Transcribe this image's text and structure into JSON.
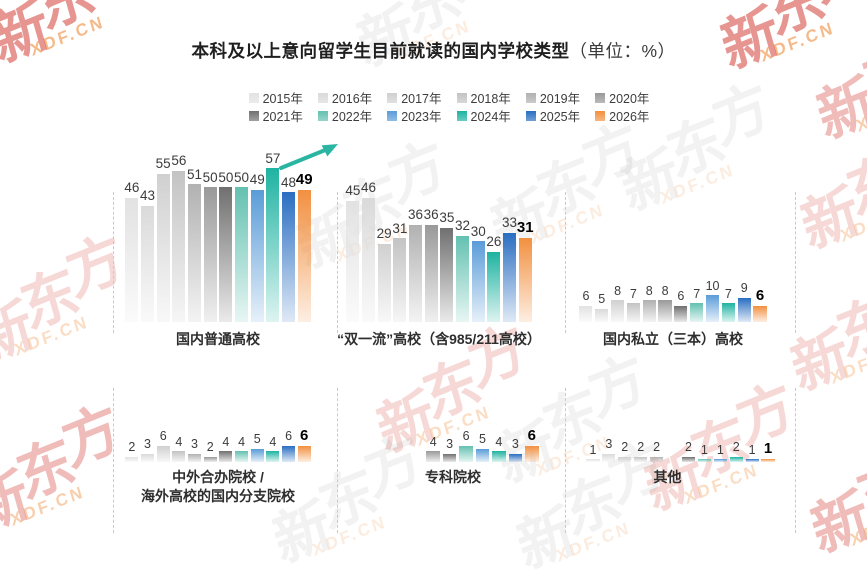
{
  "page": {
    "title_main": "本科及以上意向留学生目前就读的国内学校类型",
    "title_unit": "（单位：%）"
  },
  "brand": {
    "name": "新东方",
    "site": "XDF.CN"
  },
  "colors": {
    "arrow": "#2ab5a3",
    "value_label": "#3c3c3c",
    "emphasis_label": "#000000"
  },
  "emphasis_year": "2026年",
  "legend": {
    "items": [
      {
        "label": "2015年",
        "color": "#e2e2e2"
      },
      {
        "label": "2016年",
        "color": "#dadada"
      },
      {
        "label": "2017年",
        "color": "#d0d0d0"
      },
      {
        "label": "2018年",
        "color": "#c3c3c3"
      },
      {
        "label": "2019年",
        "color": "#b1b1b1"
      },
      {
        "label": "2020年",
        "color": "#999999"
      },
      {
        "label": "2021年",
        "color": "#707070"
      },
      {
        "label": "2022年",
        "color": "#63c1b0"
      },
      {
        "label": "2023年",
        "color": "#5a9cd8"
      },
      {
        "label": "2024年",
        "color": "#1eb3a1"
      },
      {
        "label": "2025年",
        "color": "#2a6ec1"
      },
      {
        "label": "2026年",
        "color": "#f29040"
      }
    ]
  },
  "chart_data": [
    {
      "type": "bar",
      "title": "国内普通高校",
      "unit": "%",
      "annotation": "trend-arrow-up",
      "points": [
        {
          "year": "2015年",
          "value": 46
        },
        {
          "year": "2016年",
          "value": 43
        },
        {
          "year": "2017年",
          "value": 55
        },
        {
          "year": "2018年",
          "value": 56
        },
        {
          "year": "2019年",
          "value": 51
        },
        {
          "year": "2020年",
          "value": 50
        },
        {
          "year": "2021年",
          "value": 50
        },
        {
          "year": "2022年",
          "value": 50
        },
        {
          "year": "2023年",
          "value": 49
        },
        {
          "year": "2024年",
          "value": 57
        },
        {
          "year": "2025年",
          "value": 48
        },
        {
          "year": "2026年",
          "value": 49
        }
      ]
    },
    {
      "type": "bar",
      "title": "“双一流”高校（含985/211高校）",
      "unit": "%",
      "points": [
        {
          "year": "2015年",
          "value": 45
        },
        {
          "year": "2016年",
          "value": 46
        },
        {
          "year": "2017年",
          "value": 29
        },
        {
          "year": "2018年",
          "value": 31
        },
        {
          "year": "2019年",
          "value": 36
        },
        {
          "year": "2020年",
          "value": 36
        },
        {
          "year": "2021年",
          "value": 35
        },
        {
          "year": "2022年",
          "value": 32
        },
        {
          "year": "2023年",
          "value": 30
        },
        {
          "year": "2024年",
          "value": 26
        },
        {
          "year": "2025年",
          "value": 33
        },
        {
          "year": "2026年",
          "value": 31
        }
      ]
    },
    {
      "type": "bar",
      "title": "国内私立（三本）高校",
      "unit": "%",
      "points": [
        {
          "year": "2015年",
          "value": 6
        },
        {
          "year": "2016年",
          "value": 5
        },
        {
          "year": "2017年",
          "value": 8
        },
        {
          "year": "2018年",
          "value": 7
        },
        {
          "year": "2019年",
          "value": 8
        },
        {
          "year": "2020年",
          "value": 8
        },
        {
          "year": "2021年",
          "value": 6
        },
        {
          "year": "2022年",
          "value": 7
        },
        {
          "year": "2023年",
          "value": 10
        },
        {
          "year": "2024年",
          "value": 7
        },
        {
          "year": "2025年",
          "value": 9
        },
        {
          "year": "2026年",
          "value": 6
        }
      ]
    },
    {
      "type": "bar",
      "title": "中外合办院校 /\n海外高校的国内分支院校",
      "unit": "%",
      "points": [
        {
          "year": "2015年",
          "value": 2
        },
        {
          "year": "2016年",
          "value": 3
        },
        {
          "year": "2017年",
          "value": 6
        },
        {
          "year": "2018年",
          "value": 4
        },
        {
          "year": "2019年",
          "value": 3
        },
        {
          "year": "2020年",
          "value": 2
        },
        {
          "year": "2021年",
          "value": 4
        },
        {
          "year": "2022年",
          "value": 4
        },
        {
          "year": "2023年",
          "value": 5
        },
        {
          "year": "2024年",
          "value": 4
        },
        {
          "year": "2025年",
          "value": 6
        },
        {
          "year": "2026年",
          "value": 6
        }
      ]
    },
    {
      "type": "bar",
      "title": "专科院校",
      "unit": "%",
      "points": [
        {
          "year": "2020年",
          "value": 4
        },
        {
          "year": "2021年",
          "value": 3
        },
        {
          "year": "2022年",
          "value": 6
        },
        {
          "year": "2023年",
          "value": 5
        },
        {
          "year": "2024年",
          "value": 4
        },
        {
          "year": "2025年",
          "value": 3
        },
        {
          "year": "2026年",
          "value": 6
        }
      ]
    },
    {
      "type": "bar",
      "title": "其他",
      "unit": "%",
      "points": [
        {
          "year": "2015年",
          "value": 1
        },
        {
          "year": "2016年",
          "value": 3
        },
        {
          "year": "2017年",
          "value": 2
        },
        {
          "year": "2018年",
          "value": 2
        },
        {
          "year": "2019年",
          "value": 2
        },
        {
          "year": "2021年",
          "value": 2,
          "gap_before": true
        },
        {
          "year": "2022年",
          "value": 1
        },
        {
          "year": "2023年",
          "value": 1
        },
        {
          "year": "2024年",
          "value": 2
        },
        {
          "year": "2025年",
          "value": 1
        },
        {
          "year": "2026年",
          "value": 1
        }
      ]
    }
  ]
}
